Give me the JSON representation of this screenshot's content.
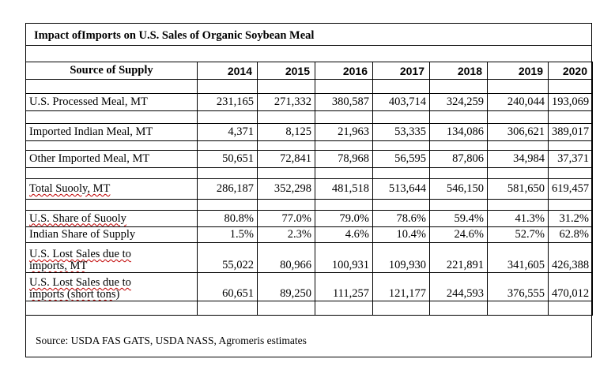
{
  "title": "Impact ofImports on U.S. Sales of Organic Soybean Meal",
  "header": {
    "source_label": "Source of Supply",
    "years": [
      "2014",
      "2015",
      "2016",
      "2017",
      "2018",
      "2019",
      "2020"
    ]
  },
  "rows": [
    {
      "label": "U.S. Processed Meal, MT",
      "values": [
        "231,165",
        "271,332",
        "380,587",
        "403,714",
        "324,259",
        "240,044",
        "193,069"
      ]
    },
    {
      "label": "Imported Indian Meal, MT",
      "values": [
        "4,371",
        "8,125",
        "21,963",
        "53,335",
        "134,086",
        "306,621",
        "389,017"
      ]
    },
    {
      "label": "Other Imported Meal, MT",
      "values": [
        "50,651",
        "72,841",
        "78,968",
        "56,595",
        "87,806",
        "34,984",
        "37,371"
      ]
    },
    {
      "label": "Total Suooly, MT",
      "values": [
        "286,187",
        "352,298",
        "481,518",
        "513,644",
        "546,150",
        "581,650",
        "619,457"
      ]
    },
    {
      "label": "U.S. Share of Suooly",
      "values": [
        "80.8%",
        "77.0%",
        "79.0%",
        "78.6%",
        "59.4%",
        "41.3%",
        "31.2%"
      ]
    },
    {
      "label": "Indian Share of Supply",
      "values": [
        "1.5%",
        "2.3%",
        "4.6%",
        "10.4%",
        "24.6%",
        "52.7%",
        "62.8%"
      ]
    },
    {
      "label_line1": "U.S. Lost Sales due to",
      "label_line2": "imports, MT",
      "values": [
        "55,022",
        "80,966",
        "100,931",
        "109,930",
        "221,891",
        "341,605",
        "426,388"
      ]
    },
    {
      "label_line1": "U.S. Lost Sales due to",
      "label_line2": "imports  (short tons)",
      "values": [
        "60,651",
        "89,250",
        "111,257",
        "121,177",
        "244,593",
        "376,555",
        "470,012"
      ]
    }
  ],
  "footnote": "Source: USDA FAS GATS, USDA NASS, Agromeris estimates"
}
